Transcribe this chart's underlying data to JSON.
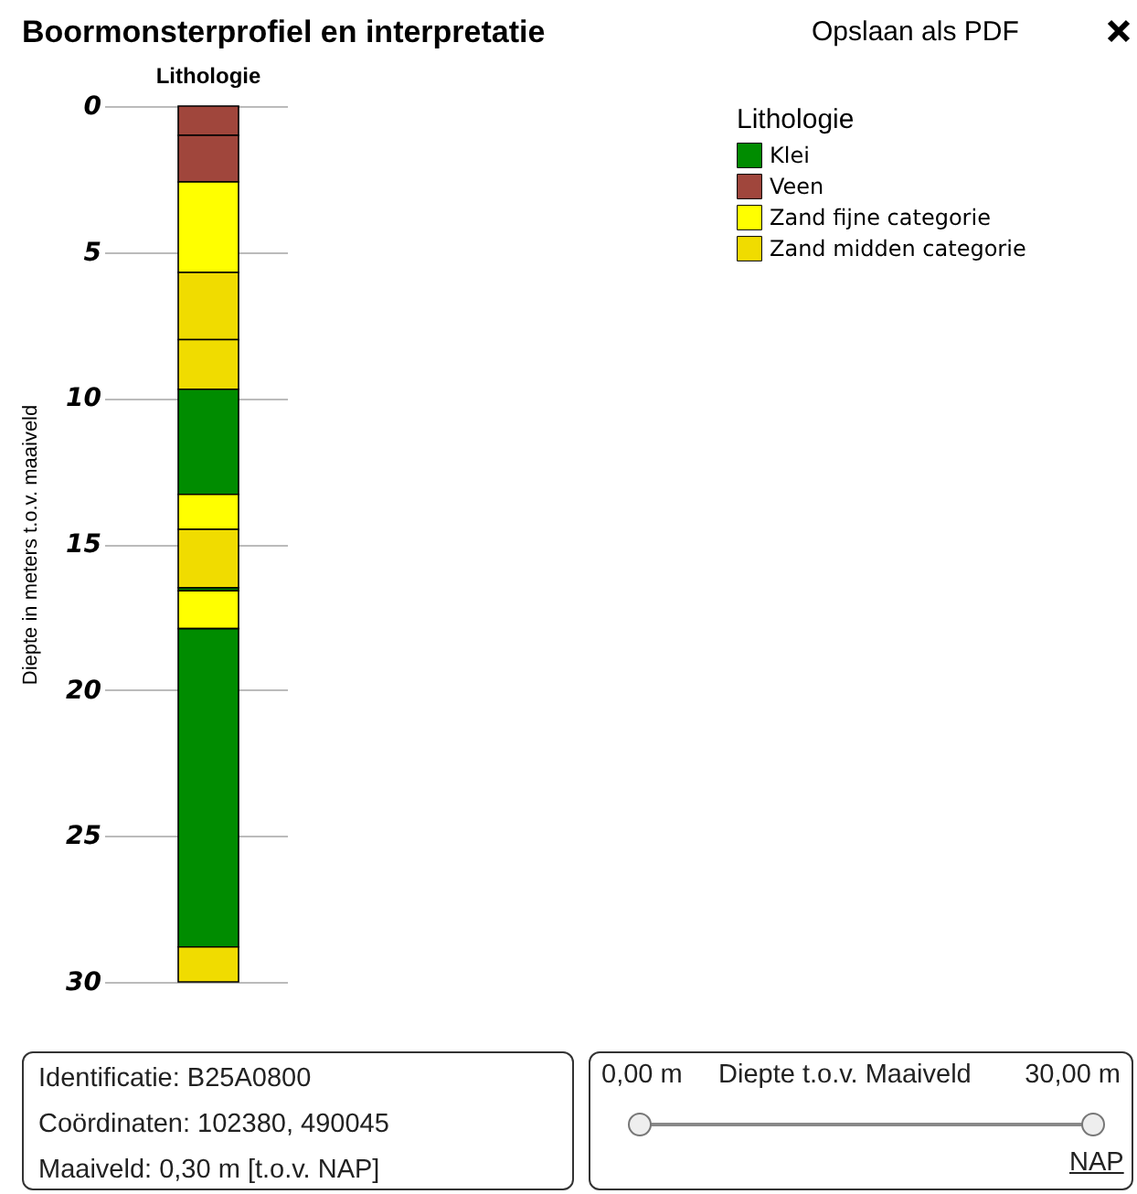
{
  "chart_data": {
    "type": "bar",
    "title": "Boormonsterprofiel en interpretatie",
    "categories": [
      "Lithologie"
    ],
    "stacked": true,
    "ylabel": "Diepte in meters t.o.v. maaiveld",
    "ylim": [
      30,
      0
    ],
    "yticks": [
      0,
      5,
      10,
      15,
      20,
      25,
      30
    ],
    "grid": "y",
    "legend_title": "Lithologie",
    "legend": "top right",
    "series": [
      {
        "name": "Veen",
        "color": "#a0463c",
        "values": [
          1.0
        ]
      },
      {
        "color": "#a0463c",
        "values": [
          1.6
        ]
      },
      {
        "name": "Zand fijne categorie",
        "color": "#ffff00",
        "values": [
          3.1
        ]
      },
      {
        "name": "Zand midden categorie",
        "color": "#f0dc00",
        "values": [
          2.3
        ]
      },
      {
        "color": "#f0dc00",
        "values": [
          1.7
        ]
      },
      {
        "name": "Klei",
        "color": "#008c00",
        "values": [
          3.6
        ]
      },
      {
        "color": "#ffff00",
        "values": [
          1.2
        ]
      },
      {
        "color": "#f0dc00",
        "values": [
          2.0
        ]
      },
      {
        "color": "#008c00",
        "values": [
          0.1
        ]
      },
      {
        "color": "#ffff00",
        "values": [
          1.3
        ]
      },
      {
        "color": "#008c00",
        "values": [
          10.9
        ]
      },
      {
        "color": "#f0dc00",
        "values": [
          1.2
        ]
      }
    ],
    "annotations": [
      "Opslaan als PDF",
      "Identificatie: B25A0800",
      "Coördinaten: 102380, 490045",
      "Maaiveld: 0,30 m [t.o.v. NAP]",
      "0,00 m",
      "Diepte t.o.v. Maaiveld",
      "30,00 m",
      "NAP"
    ]
  }
}
